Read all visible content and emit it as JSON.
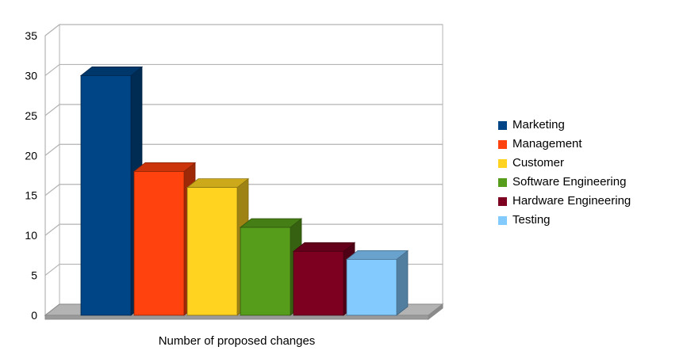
{
  "chart_data": {
    "type": "bar",
    "style": "3d-column",
    "title": "",
    "xlabel": "Number of proposed changes",
    "ylabel": "",
    "categories": [
      "Marketing",
      "Management",
      "Customer",
      "Software Engineering",
      "Hardware Engineering",
      "Testing"
    ],
    "values": [
      30,
      18,
      16,
      11,
      8,
      7
    ],
    "colors": [
      "#004586",
      "#FF420E",
      "#FFD320",
      "#579D1C",
      "#7E0021",
      "#83CAFF"
    ],
    "ylim": [
      0,
      35
    ],
    "yticks": [
      0,
      5,
      10,
      15,
      20,
      25,
      30,
      35
    ],
    "grid": true,
    "legend_position": "right",
    "legend": [
      "Marketing",
      "Management",
      "Customer",
      "Software Engineering",
      "Hardware Engineering",
      "Testing"
    ],
    "wall_color": "#ffffff",
    "floor_color": "#b3b3b3",
    "gridline_color": "#b3b3b3",
    "axis_text_color": "#000000"
  }
}
